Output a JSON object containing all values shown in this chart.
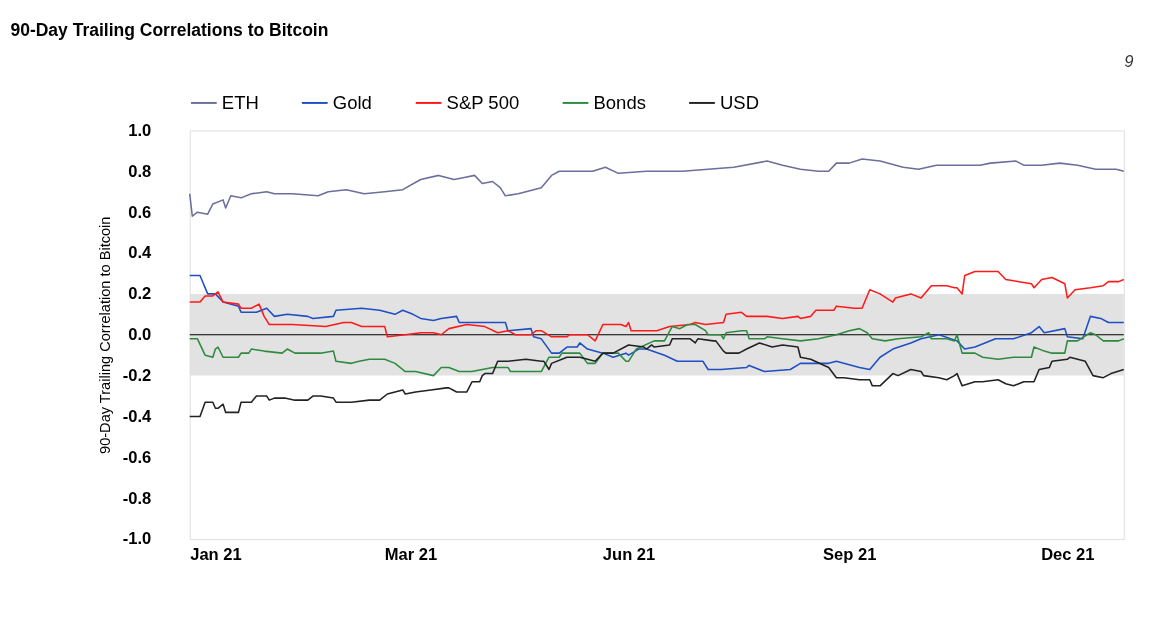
{
  "chart_data": {
    "type": "line",
    "title": "90-Day Trailing Correlations to Bitcoin",
    "ylabel": "90-Day Trailing Correlation to Bitcoin",
    "annotations": [
      "9"
    ],
    "xlim": [
      "2021-01-01",
      "2021-12-31"
    ],
    "xticks": [
      {
        "value": "2021-01-01",
        "label": "Jan 21"
      },
      {
        "value": "2021-03-28",
        "label": "Mar 21"
      },
      {
        "value": "2021-06-21",
        "label": "Jun 21"
      },
      {
        "value": "2021-09-15",
        "label": "Sep 21"
      },
      {
        "value": "2021-12-09",
        "label": "Dec 21"
      }
    ],
    "ylim": [
      -1,
      1
    ],
    "yticks": [
      {
        "value": -1,
        "label": "-1.0"
      },
      {
        "value": -0.8,
        "label": "-0.8"
      },
      {
        "value": -0.6,
        "label": "-0.6"
      },
      {
        "value": -0.4,
        "label": "-0.4"
      },
      {
        "value": -0.2,
        "label": "-0.2"
      },
      {
        "value": 0,
        "label": "0.0"
      },
      {
        "value": 0.2,
        "label": "0.2"
      },
      {
        "value": 0.4,
        "label": "0.4"
      },
      {
        "value": 0.6,
        "label": "0.6"
      },
      {
        "value": 0.8,
        "label": "0.8"
      },
      {
        "value": 1,
        "label": "1.0"
      }
    ],
    "grid": false,
    "legend": "top",
    "line_style": "solid",
    "bands": [
      {
        "axis": "y",
        "from": -0.2,
        "to": 0.2,
        "color": "#e2e2e2"
      }
    ],
    "ref_lines": [
      {
        "axis": "y",
        "value": 0,
        "color": "#000000"
      }
    ],
    "series": [
      {
        "name": "ETH",
        "color": "#6b6f9a",
        "x": [
          "2021-01-01",
          "2021-01-02",
          "2021-01-04",
          "2021-01-08",
          "2021-01-10",
          "2021-01-14",
          "2021-01-15",
          "2021-01-17",
          "2021-01-21",
          "2021-01-25",
          "2021-01-31",
          "2021-02-03",
          "2021-02-10",
          "2021-02-20",
          "2021-02-24",
          "2021-03-03",
          "2021-03-10",
          "2021-03-18",
          "2021-03-25",
          "2021-04-01",
          "2021-04-08",
          "2021-04-14",
          "2021-04-18",
          "2021-04-22",
          "2021-04-25",
          "2021-04-29",
          "2021-05-02",
          "2021-05-04",
          "2021-05-09",
          "2021-05-15",
          "2021-05-18",
          "2021-05-22",
          "2021-05-25",
          "2021-06-07",
          "2021-06-12",
          "2021-06-17",
          "2021-06-28",
          "2021-07-12",
          "2021-07-22",
          "2021-08-01",
          "2021-08-14",
          "2021-08-20",
          "2021-08-27",
          "2021-09-03",
          "2021-09-07",
          "2021-09-10",
          "2021-09-15",
          "2021-09-20",
          "2021-09-27",
          "2021-10-06",
          "2021-10-12",
          "2021-10-19",
          "2021-10-26",
          "2021-11-05",
          "2021-11-09",
          "2021-11-19",
          "2021-11-22",
          "2021-11-29",
          "2021-12-06",
          "2021-12-13",
          "2021-12-20",
          "2021-12-28",
          "2021-12-31"
        ],
        "values": [
          0.69,
          0.58,
          0.6,
          0.59,
          0.64,
          0.66,
          0.62,
          0.68,
          0.67,
          0.69,
          0.7,
          0.69,
          0.69,
          0.68,
          0.7,
          0.71,
          0.69,
          0.7,
          0.71,
          0.76,
          0.78,
          0.76,
          0.77,
          0.78,
          0.74,
          0.75,
          0.72,
          0.68,
          0.69,
          0.71,
          0.72,
          0.78,
          0.8,
          0.8,
          0.82,
          0.79,
          0.8,
          0.8,
          0.81,
          0.82,
          0.85,
          0.83,
          0.81,
          0.8,
          0.8,
          0.84,
          0.84,
          0.86,
          0.85,
          0.82,
          0.81,
          0.83,
          0.83,
          0.83,
          0.84,
          0.85,
          0.83,
          0.83,
          0.84,
          0.83,
          0.81,
          0.81,
          0.8
        ]
      },
      {
        "name": "Gold",
        "color": "#1f4fc4",
        "x": [
          "2021-01-01",
          "2021-01-05",
          "2021-01-08",
          "2021-01-11",
          "2021-01-14",
          "2021-01-20",
          "2021-01-21",
          "2021-01-27",
          "2021-01-31",
          "2021-02-03",
          "2021-02-08",
          "2021-02-16",
          "2021-02-18",
          "2021-02-26",
          "2021-02-27",
          "2021-03-09",
          "2021-03-16",
          "2021-03-22",
          "2021-03-25",
          "2021-03-29",
          "2021-04-01",
          "2021-04-06",
          "2021-04-09",
          "2021-04-15",
          "2021-04-16",
          "2021-04-26",
          "2021-05-04",
          "2021-05-05",
          "2021-05-14",
          "2021-05-15",
          "2021-05-18",
          "2021-05-22",
          "2021-05-25",
          "2021-05-28",
          "2021-06-01",
          "2021-06-02",
          "2021-06-05",
          "2021-06-11",
          "2021-06-15",
          "2021-06-20",
          "2021-06-21",
          "2021-06-25",
          "2021-06-28",
          "2021-07-05",
          "2021-07-10",
          "2021-07-20",
          "2021-07-22",
          "2021-07-27",
          "2021-08-06",
          "2021-08-07",
          "2021-08-13",
          "2021-08-23",
          "2021-08-27",
          "2021-09-07",
          "2021-09-10",
          "2021-09-19",
          "2021-09-23",
          "2021-09-27",
          "2021-10-02",
          "2021-10-09",
          "2021-10-13",
          "2021-10-20",
          "2021-10-27",
          "2021-10-30",
          "2021-11-03",
          "2021-11-11",
          "2021-11-18",
          "2021-11-25",
          "2021-11-28",
          "2021-11-30",
          "2021-12-08",
          "2021-12-09",
          "2021-12-15",
          "2021-12-18",
          "2021-12-22",
          "2021-12-25",
          "2021-12-31"
        ],
        "values": [
          0.29,
          0.29,
          0.2,
          0.2,
          0.16,
          0.14,
          0.11,
          0.11,
          0.13,
          0.09,
          0.1,
          0.09,
          0.08,
          0.09,
          0.12,
          0.13,
          0.12,
          0.1,
          0.12,
          0.1,
          0.08,
          0.07,
          0.08,
          0.09,
          0.06,
          0.06,
          0.06,
          0.02,
          0.03,
          -0.01,
          -0.02,
          -0.09,
          -0.09,
          -0.06,
          -0.06,
          -0.04,
          -0.07,
          -0.09,
          -0.11,
          -0.09,
          -0.1,
          -0.07,
          -0.07,
          -0.1,
          -0.13,
          -0.13,
          -0.17,
          -0.17,
          -0.16,
          -0.15,
          -0.18,
          -0.17,
          -0.14,
          -0.14,
          -0.13,
          -0.16,
          -0.17,
          -0.11,
          -0.07,
          -0.04,
          -0.02,
          0.0,
          -0.03,
          -0.07,
          -0.06,
          -0.02,
          -0.02,
          0.01,
          0.04,
          0.01,
          0.03,
          -0.01,
          -0.02,
          0.09,
          0.08,
          0.06,
          0.06
        ]
      },
      {
        "name": "S&P 500",
        "color": "#ff1a1a",
        "x": [
          "2021-01-01",
          "2021-01-05",
          "2021-01-07",
          "2021-01-10",
          "2021-01-12",
          "2021-01-14",
          "2021-01-20",
          "2021-01-21",
          "2021-01-25",
          "2021-01-28",
          "2021-01-30",
          "2021-02-01",
          "2021-02-07",
          "2021-02-10",
          "2021-02-23",
          "2021-03-02",
          "2021-03-05",
          "2021-03-09",
          "2021-03-18",
          "2021-03-19",
          "2021-03-26",
          "2021-04-01",
          "2021-04-06",
          "2021-04-09",
          "2021-04-12",
          "2021-04-19",
          "2021-04-26",
          "2021-05-01",
          "2021-05-05",
          "2021-05-08",
          "2021-05-14",
          "2021-05-16",
          "2021-05-18",
          "2021-05-22",
          "2021-05-28",
          "2021-05-29",
          "2021-06-05",
          "2021-06-08",
          "2021-06-11",
          "2021-06-18",
          "2021-06-20",
          "2021-06-21",
          "2021-06-22",
          "2021-06-28",
          "2021-07-02",
          "2021-07-07",
          "2021-07-15",
          "2021-07-17",
          "2021-07-21",
          "2021-07-28",
          "2021-07-29",
          "2021-08-04",
          "2021-08-06",
          "2021-08-14",
          "2021-08-20",
          "2021-08-26",
          "2021-08-27",
          "2021-08-31",
          "2021-09-02",
          "2021-09-09",
          "2021-09-10",
          "2021-09-17",
          "2021-09-20",
          "2021-09-23",
          "2021-09-27",
          "2021-10-02",
          "2021-10-03",
          "2021-10-09",
          "2021-10-13",
          "2021-10-17",
          "2021-10-23",
          "2021-10-26",
          "2021-10-27",
          "2021-10-29",
          "2021-10-30",
          "2021-11-03",
          "2021-11-12",
          "2021-11-15",
          "2021-11-25",
          "2021-11-26",
          "2021-11-29",
          "2021-12-03",
          "2021-12-08",
          "2021-12-09",
          "2021-12-12",
          "2021-12-18",
          "2021-12-23",
          "2021-12-25",
          "2021-12-29",
          "2021-12-31"
        ],
        "values": [
          0.16,
          0.16,
          0.19,
          0.19,
          0.21,
          0.16,
          0.15,
          0.13,
          0.13,
          0.15,
          0.09,
          0.05,
          0.05,
          0.05,
          0.04,
          0.06,
          0.06,
          0.04,
          0.04,
          -0.01,
          0.0,
          0.01,
          0.01,
          0.0,
          0.03,
          0.05,
          0.04,
          0.01,
          0.02,
          0.0,
          0.0,
          0.02,
          0.02,
          -0.01,
          -0.01,
          0.0,
          0.0,
          -0.03,
          0.05,
          0.05,
          0.04,
          0.06,
          0.02,
          0.02,
          0.02,
          0.04,
          0.05,
          0.06,
          0.05,
          0.06,
          0.1,
          0.11,
          0.09,
          0.09,
          0.08,
          0.09,
          0.08,
          0.09,
          0.12,
          0.12,
          0.14,
          0.13,
          0.13,
          0.22,
          0.2,
          0.16,
          0.18,
          0.2,
          0.18,
          0.24,
          0.24,
          0.23,
          0.23,
          0.2,
          0.29,
          0.31,
          0.31,
          0.27,
          0.25,
          0.23,
          0.27,
          0.28,
          0.25,
          0.18,
          0.22,
          0.23,
          0.24,
          0.26,
          0.26,
          0.27
        ]
      },
      {
        "name": "Bonds",
        "color": "#2e8b3e",
        "x": [
          "2021-01-01",
          "2021-01-04",
          "2021-01-07",
          "2021-01-10",
          "2021-01-11",
          "2021-01-12",
          "2021-01-14",
          "2021-01-20",
          "2021-01-21",
          "2021-01-24",
          "2021-01-25",
          "2021-01-30",
          "2021-02-06",
          "2021-02-08",
          "2021-02-11",
          "2021-02-18",
          "2021-02-21",
          "2021-02-26",
          "2021-02-27",
          "2021-03-05",
          "2021-03-08",
          "2021-03-12",
          "2021-03-18",
          "2021-03-22",
          "2021-03-26",
          "2021-03-30",
          "2021-04-06",
          "2021-04-09",
          "2021-04-12",
          "2021-04-16",
          "2021-04-21",
          "2021-04-29",
          "2021-05-05",
          "2021-05-06",
          "2021-05-14",
          "2021-05-18",
          "2021-05-21",
          "2021-05-25",
          "2021-05-26",
          "2021-06-02",
          "2021-06-05",
          "2021-06-08",
          "2021-06-11",
          "2021-06-17",
          "2021-06-20",
          "2021-06-21",
          "2021-06-24",
          "2021-07-01",
          "2021-07-05",
          "2021-07-08",
          "2021-07-11",
          "2021-07-14",
          "2021-07-17",
          "2021-07-21",
          "2021-07-22",
          "2021-07-27",
          "2021-07-28",
          "2021-07-29",
          "2021-08-04",
          "2021-08-06",
          "2021-08-07",
          "2021-08-13",
          "2021-08-14",
          "2021-08-20",
          "2021-08-27",
          "2021-09-03",
          "2021-09-10",
          "2021-09-15",
          "2021-09-19",
          "2021-09-22",
          "2021-09-24",
          "2021-09-29",
          "2021-10-04",
          "2021-10-13",
          "2021-10-16",
          "2021-10-17",
          "2021-10-23",
          "2021-10-26",
          "2021-10-27",
          "2021-10-29",
          "2021-11-03",
          "2021-11-06",
          "2021-11-12",
          "2021-11-18",
          "2021-11-25",
          "2021-11-26",
          "2021-11-30",
          "2021-12-03",
          "2021-12-08",
          "2021-12-09",
          "2021-12-13",
          "2021-12-18",
          "2021-12-20",
          "2021-12-23",
          "2021-12-29",
          "2021-12-31"
        ],
        "values": [
          -0.02,
          -0.02,
          -0.1,
          -0.11,
          -0.07,
          -0.06,
          -0.11,
          -0.11,
          -0.09,
          -0.09,
          -0.07,
          -0.08,
          -0.09,
          -0.07,
          -0.09,
          -0.09,
          -0.09,
          -0.08,
          -0.13,
          -0.14,
          -0.13,
          -0.12,
          -0.12,
          -0.14,
          -0.18,
          -0.18,
          -0.2,
          -0.16,
          -0.16,
          -0.18,
          -0.18,
          -0.16,
          -0.16,
          -0.18,
          -0.18,
          -0.18,
          -0.11,
          -0.11,
          -0.09,
          -0.09,
          -0.14,
          -0.14,
          -0.09,
          -0.09,
          -0.13,
          -0.13,
          -0.07,
          -0.03,
          -0.03,
          0.04,
          0.03,
          0.05,
          0.05,
          0.02,
          0.0,
          0.0,
          -0.02,
          0.01,
          0.02,
          0.02,
          -0.02,
          -0.02,
          -0.01,
          -0.02,
          -0.03,
          -0.02,
          0.0,
          0.02,
          0.03,
          0.01,
          -0.02,
          -0.03,
          -0.02,
          -0.01,
          0.01,
          -0.02,
          -0.02,
          -0.03,
          0.0,
          -0.09,
          -0.09,
          -0.11,
          -0.12,
          -0.11,
          -0.11,
          -0.06,
          -0.08,
          -0.09,
          -0.09,
          -0.03,
          -0.03,
          0.01,
          0.0,
          -0.03,
          -0.03,
          -0.02
        ]
      },
      {
        "name": "USD",
        "color": "#222222",
        "x": [
          "2021-01-01",
          "2021-01-05",
          "2021-01-07",
          "2021-01-10",
          "2021-01-11",
          "2021-01-12",
          "2021-01-14",
          "2021-01-15",
          "2021-01-20",
          "2021-01-21",
          "2021-01-25",
          "2021-01-27",
          "2021-01-28",
          "2021-01-31",
          "2021-02-01",
          "2021-02-03",
          "2021-02-07",
          "2021-02-11",
          "2021-02-16",
          "2021-02-18",
          "2021-02-21",
          "2021-02-26",
          "2021-02-27",
          "2021-03-02",
          "2021-03-05",
          "2021-03-12",
          "2021-03-16",
          "2021-03-19",
          "2021-03-22",
          "2021-03-25",
          "2021-03-26",
          "2021-03-30",
          "2021-04-05",
          "2021-04-11",
          "2021-04-12",
          "2021-04-15",
          "2021-04-19",
          "2021-04-21",
          "2021-04-24",
          "2021-04-25",
          "2021-04-26",
          "2021-04-29",
          "2021-05-01",
          "2021-05-05",
          "2021-05-12",
          "2021-05-18",
          "2021-05-19",
          "2021-05-21",
          "2021-05-22",
          "2021-05-28",
          "2021-06-02",
          "2021-06-08",
          "2021-06-11",
          "2021-06-15",
          "2021-06-21",
          "2021-06-27",
          "2021-06-28",
          "2021-06-30",
          "2021-07-01",
          "2021-07-07",
          "2021-07-08",
          "2021-07-15",
          "2021-07-17",
          "2021-07-18",
          "2021-07-24",
          "2021-07-25",
          "2021-07-28",
          "2021-07-29",
          "2021-08-03",
          "2021-08-06",
          "2021-08-11",
          "2021-08-16",
          "2021-08-20",
          "2021-08-26",
          "2021-08-27",
          "2021-08-31",
          "2021-09-07",
          "2021-09-10",
          "2021-09-13",
          "2021-09-19",
          "2021-09-23",
          "2021-09-24",
          "2021-09-27",
          "2021-10-02",
          "2021-10-04",
          "2021-10-09",
          "2021-10-13",
          "2021-10-14",
          "2021-10-20",
          "2021-10-23",
          "2021-10-26",
          "2021-10-27",
          "2021-10-29",
          "2021-11-03",
          "2021-11-06",
          "2021-11-12",
          "2021-11-15",
          "2021-11-18",
          "2021-11-22",
          "2021-11-26",
          "2021-11-28",
          "2021-12-02",
          "2021-12-03",
          "2021-12-09",
          "2021-12-10",
          "2021-12-16",
          "2021-12-19",
          "2021-12-23",
          "2021-12-26",
          "2021-12-31"
        ],
        "values": [
          -0.4,
          -0.4,
          -0.33,
          -0.33,
          -0.36,
          -0.36,
          -0.34,
          -0.38,
          -0.38,
          -0.33,
          -0.33,
          -0.3,
          -0.3,
          -0.3,
          -0.32,
          -0.31,
          -0.31,
          -0.32,
          -0.32,
          -0.3,
          -0.3,
          -0.31,
          -0.33,
          -0.33,
          -0.33,
          -0.32,
          -0.32,
          -0.29,
          -0.28,
          -0.27,
          -0.29,
          -0.28,
          -0.27,
          -0.26,
          -0.26,
          -0.28,
          -0.28,
          -0.23,
          -0.23,
          -0.2,
          -0.19,
          -0.19,
          -0.13,
          -0.13,
          -0.12,
          -0.13,
          -0.13,
          -0.17,
          -0.14,
          -0.11,
          -0.11,
          -0.13,
          -0.09,
          -0.09,
          -0.05,
          -0.06,
          -0.07,
          -0.05,
          -0.06,
          -0.05,
          -0.02,
          -0.02,
          -0.04,
          -0.02,
          -0.03,
          -0.03,
          -0.08,
          -0.09,
          -0.09,
          -0.07,
          -0.04,
          -0.06,
          -0.05,
          -0.06,
          -0.11,
          -0.12,
          -0.16,
          -0.21,
          -0.21,
          -0.22,
          -0.22,
          -0.25,
          -0.25,
          -0.19,
          -0.2,
          -0.17,
          -0.18,
          -0.2,
          -0.21,
          -0.22,
          -0.2,
          -0.19,
          -0.25,
          -0.23,
          -0.23,
          -0.22,
          -0.24,
          -0.25,
          -0.23,
          -0.23,
          -0.17,
          -0.16,
          -0.13,
          -0.12,
          -0.11,
          -0.13,
          -0.2,
          -0.21,
          -0.19,
          -0.17
        ]
      }
    ]
  }
}
